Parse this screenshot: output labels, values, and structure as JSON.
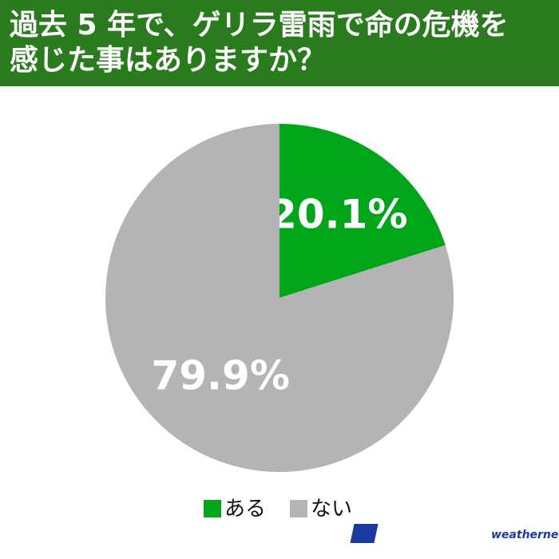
{
  "chart_data": {
    "type": "pie",
    "title": "過去 5 年で、ゲリラ雷雨で命の危機を\n感じた事はありますか？",
    "categories": [
      "ある",
      "ない"
    ],
    "values": [
      20.1,
      79.9
    ],
    "value_labels": [
      "20.1%",
      "79.9%"
    ],
    "colors": [
      "#00a51a",
      "#b4b4b4"
    ],
    "legend": "bottom"
  },
  "logo": {
    "mark": "WN",
    "name": "weathernews"
  }
}
